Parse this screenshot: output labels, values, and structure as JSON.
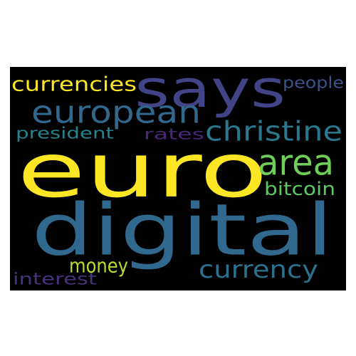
{
  "word_cloud": {
    "background_color": "#000000",
    "words": [
      {
        "id": "says",
        "text": "says",
        "color": "#414487"
      },
      {
        "id": "currencies",
        "text": "currencies",
        "color": "#fde725"
      },
      {
        "id": "people",
        "text": "people",
        "color": "#3b528b"
      },
      {
        "id": "european",
        "text": "european",
        "color": "#31688e"
      },
      {
        "id": "president",
        "text": "president",
        "color": "#26828e"
      },
      {
        "id": "rates",
        "text": "rates",
        "color": "#482878"
      },
      {
        "id": "christine",
        "text": "christine",
        "color": "#2a788e"
      },
      {
        "id": "euro",
        "text": "euro",
        "color": "#fde725"
      },
      {
        "id": "area",
        "text": "area",
        "color": "#6ece58"
      },
      {
        "id": "bitcoin",
        "text": "bitcoin",
        "color": "#5ec962"
      },
      {
        "id": "digital",
        "text": "digital",
        "color": "#31688e"
      },
      {
        "id": "money",
        "text": "money",
        "color": "#b5de2b"
      },
      {
        "id": "currency",
        "text": "currency",
        "color": "#2c728e"
      },
      {
        "id": "interest",
        "text": "interest",
        "color": "#46327e"
      }
    ]
  }
}
